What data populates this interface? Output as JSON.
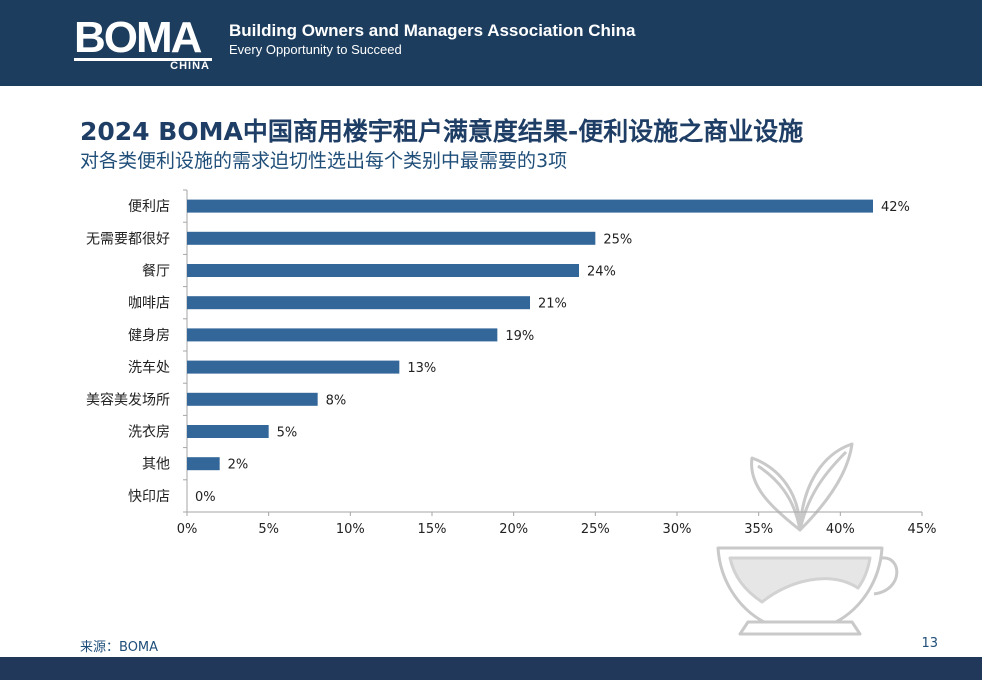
{
  "header": {
    "logo_text": "BOMA",
    "logo_sub": "CHINA",
    "org_name": "Building Owners and Managers Association China",
    "tagline": "Every Opportunity to Succeed"
  },
  "slide": {
    "title": "2024 BOMA中国商用楼宇租户满意度结果-便利设施之商业设施",
    "subtitle": "对各类便利设施的需求迫切性选出每个类别中最需要的3项",
    "source": "来源：BOMA",
    "page_number": "13"
  },
  "colors": {
    "bar": "#336699",
    "header_bg": "#1c3d5e",
    "title": "#1f3e66"
  },
  "decor_icon": "teacup-with-leaves-icon",
  "chart_data": {
    "type": "bar",
    "orientation": "horizontal",
    "categories": [
      "便利店",
      "无需要都很好",
      "餐厅",
      "咖啡店",
      "健身房",
      "洗车处",
      "美容美发场所",
      "洗衣房",
      "其他",
      "快印店"
    ],
    "values": [
      42,
      25,
      24,
      21,
      19,
      13,
      8,
      5,
      2,
      0
    ],
    "data_labels": [
      "42%",
      "25%",
      "24%",
      "21%",
      "19%",
      "13%",
      "8%",
      "5%",
      "2%",
      "0%"
    ],
    "x_ticks": [
      0,
      5,
      10,
      15,
      20,
      25,
      30,
      35,
      40,
      45
    ],
    "x_tick_labels": [
      "0%",
      "5%",
      "10%",
      "15%",
      "20%",
      "25%",
      "30%",
      "35%",
      "40%",
      "45%"
    ],
    "xlim": [
      0,
      45
    ],
    "grid": false,
    "legend": "none"
  }
}
